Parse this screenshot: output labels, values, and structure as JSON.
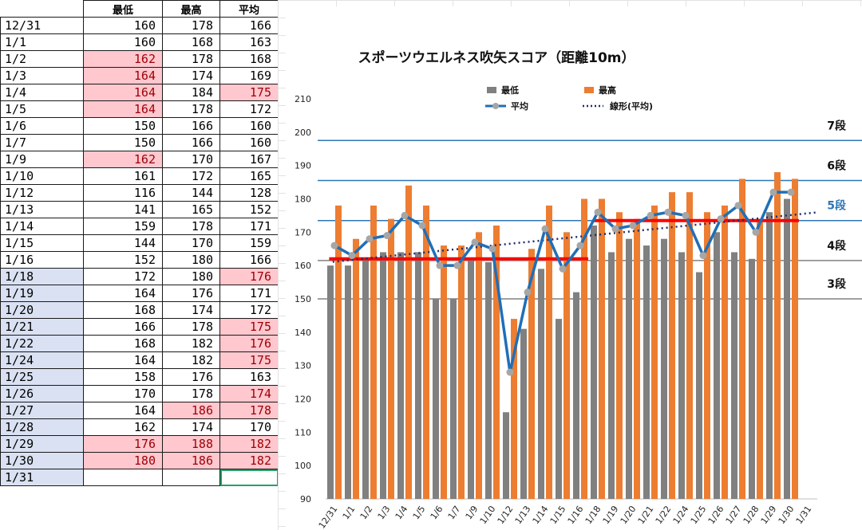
{
  "sheet": {
    "headers": [
      "",
      "最低",
      "最高",
      "平均"
    ],
    "rows": [
      {
        "date": "12/31",
        "min": "160",
        "max": "178",
        "avg": "166",
        "hl": [],
        "blue": false
      },
      {
        "date": "1/1",
        "min": "160",
        "max": "168",
        "avg": "163",
        "hl": [],
        "blue": false
      },
      {
        "date": "1/2",
        "min": "162",
        "max": "178",
        "avg": "168",
        "hl": [
          "min"
        ],
        "blue": false
      },
      {
        "date": "1/3",
        "min": "164",
        "max": "174",
        "avg": "169",
        "hl": [
          "min"
        ],
        "blue": false
      },
      {
        "date": "1/4",
        "min": "164",
        "max": "184",
        "avg": "175",
        "hl": [
          "min",
          "avg"
        ],
        "blue": false
      },
      {
        "date": "1/5",
        "min": "164",
        "max": "178",
        "avg": "172",
        "hl": [
          "min"
        ],
        "blue": false
      },
      {
        "date": "1/6",
        "min": "150",
        "max": "166",
        "avg": "160",
        "hl": [],
        "blue": false
      },
      {
        "date": "1/7",
        "min": "150",
        "max": "166",
        "avg": "160",
        "hl": [],
        "blue": false
      },
      {
        "date": "1/9",
        "min": "162",
        "max": "170",
        "avg": "167",
        "hl": [
          "min"
        ],
        "blue": false
      },
      {
        "date": "1/10",
        "min": "161",
        "max": "172",
        "avg": "165",
        "hl": [],
        "blue": false
      },
      {
        "date": "1/12",
        "min": "116",
        "max": "144",
        "avg": "128",
        "hl": [],
        "blue": false
      },
      {
        "date": "1/13",
        "min": "141",
        "max": "165",
        "avg": "152",
        "hl": [],
        "blue": false
      },
      {
        "date": "1/14",
        "min": "159",
        "max": "178",
        "avg": "171",
        "hl": [],
        "blue": false
      },
      {
        "date": "1/15",
        "min": "144",
        "max": "170",
        "avg": "159",
        "hl": [],
        "blue": false
      },
      {
        "date": "1/16",
        "min": "152",
        "max": "180",
        "avg": "166",
        "hl": [],
        "blue": false
      },
      {
        "date": "1/18",
        "min": "172",
        "max": "180",
        "avg": "176",
        "hl": [
          "avg"
        ],
        "blue": true
      },
      {
        "date": "1/19",
        "min": "164",
        "max": "176",
        "avg": "171",
        "hl": [],
        "blue": true
      },
      {
        "date": "1/20",
        "min": "168",
        "max": "174",
        "avg": "172",
        "hl": [],
        "blue": true
      },
      {
        "date": "1/21",
        "min": "166",
        "max": "178",
        "avg": "175",
        "hl": [
          "avg"
        ],
        "blue": true
      },
      {
        "date": "1/22",
        "min": "168",
        "max": "182",
        "avg": "176",
        "hl": [
          "avg"
        ],
        "blue": true
      },
      {
        "date": "1/24",
        "min": "164",
        "max": "182",
        "avg": "175",
        "hl": [
          "avg"
        ],
        "blue": true
      },
      {
        "date": "1/25",
        "min": "158",
        "max": "176",
        "avg": "163",
        "hl": [],
        "blue": true
      },
      {
        "date": "1/26",
        "min": "170",
        "max": "178",
        "avg": "174",
        "hl": [
          "avg"
        ],
        "blue": true
      },
      {
        "date": "1/27",
        "min": "164",
        "max": "186",
        "avg": "178",
        "hl": [
          "max",
          "avg"
        ],
        "blue": true
      },
      {
        "date": "1/28",
        "min": "162",
        "max": "174",
        "avg": "170",
        "hl": [],
        "blue": true
      },
      {
        "date": "1/29",
        "min": "176",
        "max": "188",
        "avg": "182",
        "hl": [
          "min",
          "max",
          "avg"
        ],
        "blue": true
      },
      {
        "date": "1/30",
        "min": "180",
        "max": "186",
        "avg": "182",
        "hl": [
          "min",
          "max",
          "avg"
        ],
        "blue": true
      },
      {
        "date": "1/31",
        "min": "",
        "max": "",
        "avg": "",
        "hl": [],
        "blue": true,
        "selected_col": "avg"
      }
    ]
  },
  "chart_data": {
    "type": "bar",
    "title": "スポーツウエルネス吹矢スコア（距離10m）",
    "categories": [
      "12/31",
      "1/1",
      "1/2",
      "1/3",
      "1/4",
      "1/5",
      "1/6",
      "1/7",
      "1/9",
      "1/10",
      "1/12",
      "1/13",
      "1/14",
      "1/15",
      "1/16",
      "1/18",
      "1/19",
      "1/20",
      "1/21",
      "1/22",
      "1/24",
      "1/25",
      "1/26",
      "1/27",
      "1/28",
      "1/29",
      "1/30",
      "1/31"
    ],
    "series": [
      {
        "name": "最低",
        "kind": "bar",
        "color": "#808080",
        "values": [
          160,
          160,
          162,
          164,
          164,
          164,
          150,
          150,
          162,
          161,
          116,
          141,
          159,
          144,
          152,
          172,
          164,
          168,
          166,
          168,
          164,
          158,
          170,
          164,
          162,
          176,
          180,
          null
        ]
      },
      {
        "name": "最高",
        "kind": "bar",
        "color": "#ed7d31",
        "values": [
          178,
          168,
          178,
          174,
          184,
          178,
          166,
          166,
          170,
          172,
          144,
          165,
          178,
          170,
          180,
          180,
          176,
          174,
          178,
          182,
          182,
          176,
          178,
          186,
          174,
          188,
          186,
          null
        ]
      },
      {
        "name": "平均",
        "kind": "line",
        "color": "#1f6fb8",
        "marker_color": "#a6a6a6",
        "values": [
          166,
          163,
          168,
          169,
          175,
          172,
          160,
          160,
          167,
          165,
          128,
          152,
          171,
          159,
          166,
          176,
          171,
          172,
          175,
          176,
          175,
          163,
          174,
          178,
          170,
          182,
          182,
          null
        ]
      },
      {
        "name": "線形(平均)",
        "kind": "trendline",
        "color": "#1f2d6b",
        "style": "dotted",
        "from": 161.1,
        "to": 175.9
      }
    ],
    "ylim": [
      90,
      210
    ],
    "yticks": [
      90,
      100,
      110,
      120,
      130,
      140,
      150,
      160,
      170,
      180,
      190,
      200,
      210
    ],
    "grid": false,
    "legend_position": "top",
    "reference_lines": [
      {
        "label": "7段",
        "value": 197.5,
        "color": "#2e75b6",
        "label_color": "#111111"
      },
      {
        "label": "6段",
        "value": 185.5,
        "color": "#2e75b6",
        "label_color": "#111111"
      },
      {
        "label": "5段",
        "value": 173.5,
        "color": "#2e75b6",
        "label_color": "#2e75b6"
      },
      {
        "label": "4段",
        "value": 161.5,
        "color": "#808080",
        "label_color": "#111111"
      },
      {
        "label": "3段",
        "value": 150,
        "color": "#808080",
        "label_color": "#111111"
      }
    ],
    "segment_lines": [
      {
        "from_category": "12/31",
        "to_category": "1/16",
        "value": 162,
        "color": "#ff0000"
      },
      {
        "from_category": "1/18",
        "to_category": "1/30",
        "value": 173.5,
        "color": "#ff0000"
      }
    ]
  }
}
